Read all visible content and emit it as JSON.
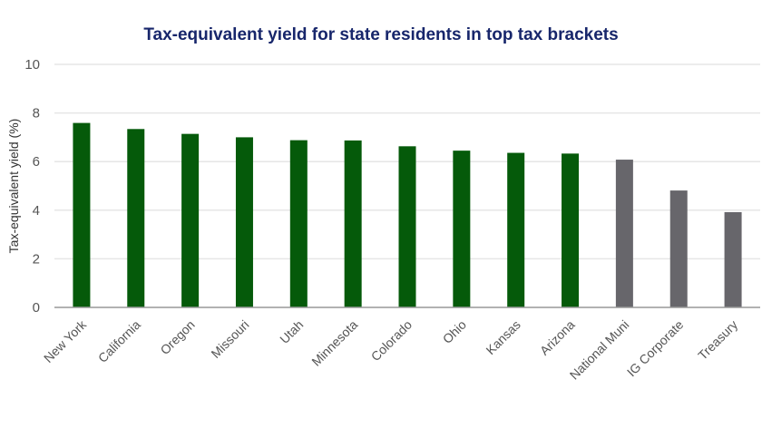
{
  "chart_data": {
    "type": "bar",
    "title": "Tax-equivalent yield for state residents in top tax brackets",
    "xlabel": "",
    "ylabel": "Tax-equivalent yield (%)",
    "ylim": [
      0,
      10
    ],
    "yticks": [
      0,
      2,
      4,
      6,
      8,
      10
    ],
    "grid": true,
    "categories": [
      "New York",
      "California",
      "Oregon",
      "Missouri",
      "Utah",
      "Minnesota",
      "Colorado",
      "Ohio",
      "Kansas",
      "Arizona",
      "National Muni",
      "IG Corporate",
      "Treasury"
    ],
    "values": [
      7.59,
      7.34,
      7.14,
      7.0,
      6.88,
      6.87,
      6.63,
      6.45,
      6.36,
      6.33,
      6.08,
      4.81,
      3.92
    ],
    "bar_colors": [
      "#055a0a",
      "#055a0a",
      "#055a0a",
      "#055a0a",
      "#055a0a",
      "#055a0a",
      "#055a0a",
      "#055a0a",
      "#055a0a",
      "#055a0a",
      "#67666b",
      "#67666b",
      "#67666b"
    ]
  }
}
